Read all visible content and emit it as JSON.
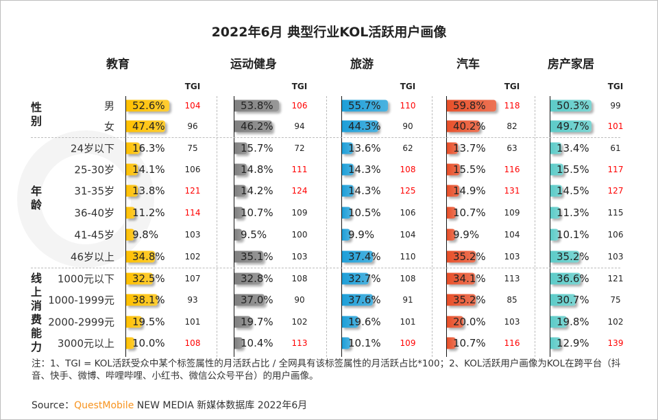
{
  "watermark": "QUESTMOBILE",
  "chart_data": {
    "type": "table",
    "title": "2022年6月 典型行业KOL活跃用户画像",
    "tgi_header": "TGI",
    "groups": [
      {
        "label": "性别",
        "rows": [
          "男",
          "女"
        ]
      },
      {
        "label": "年龄",
        "rows": [
          "24岁以下",
          "25-30岁",
          "31-35岁",
          "36-40岁",
          "41-45岁",
          "46岁以上"
        ]
      },
      {
        "label": "线上消费能力",
        "rows": [
          "1000元以下",
          "1000-1999元",
          "2000-2999元",
          "3000元以上"
        ]
      }
    ],
    "row_labels": [
      "男",
      "女",
      "24岁以下",
      "25-30岁",
      "31-35岁",
      "36-40岁",
      "41-45岁",
      "46岁以上",
      "1000元以下",
      "1000-1999元",
      "2000-2999元",
      "3000元以上"
    ],
    "series": [
      {
        "name": "教育",
        "color": "#ffc000",
        "values": [
          52.6,
          47.4,
          16.3,
          14.1,
          13.8,
          11.2,
          9.8,
          34.8,
          32.5,
          38.1,
          19.5,
          10.0
        ],
        "tgi": [
          104,
          96,
          75,
          106,
          121,
          114,
          103,
          102,
          107,
          93,
          101,
          108
        ],
        "tgi_highlight": [
          true,
          false,
          false,
          false,
          true,
          true,
          false,
          false,
          false,
          false,
          false,
          true
        ]
      },
      {
        "name": "运动健身",
        "color": "#7f7f7f",
        "values": [
          53.8,
          46.2,
          15.7,
          14.8,
          14.2,
          10.7,
          9.5,
          35.1,
          32.8,
          37.0,
          19.7,
          10.4
        ],
        "tgi": [
          106,
          94,
          72,
          111,
          124,
          109,
          100,
          103,
          108,
          90,
          102,
          113
        ],
        "tgi_highlight": [
          true,
          false,
          false,
          true,
          true,
          false,
          false,
          false,
          false,
          false,
          false,
          true
        ]
      },
      {
        "name": "旅游",
        "color": "#1e9fd8",
        "values": [
          55.7,
          44.3,
          13.6,
          14.3,
          14.3,
          10.5,
          9.9,
          37.4,
          32.7,
          37.6,
          19.6,
          10.1
        ],
        "tgi": [
          110,
          90,
          62,
          108,
          125,
          106,
          104,
          110,
          108,
          91,
          101,
          109
        ],
        "tgi_highlight": [
          true,
          false,
          false,
          true,
          true,
          false,
          false,
          false,
          false,
          false,
          false,
          true
        ]
      },
      {
        "name": "汽车",
        "color": "#e8502a",
        "values": [
          59.8,
          40.2,
          13.7,
          15.5,
          14.9,
          10.7,
          9.9,
          35.2,
          34.1,
          35.2,
          20.0,
          10.7
        ],
        "tgi": [
          118,
          82,
          63,
          116,
          131,
          109,
          104,
          103,
          113,
          85,
          103,
          116
        ],
        "tgi_highlight": [
          true,
          false,
          false,
          true,
          true,
          false,
          false,
          false,
          false,
          false,
          false,
          true
        ]
      },
      {
        "name": "房产家居",
        "color": "#5ccbc8",
        "values": [
          50.3,
          49.7,
          13.4,
          15.5,
          14.5,
          11.3,
          10.1,
          35.2,
          36.6,
          30.7,
          19.8,
          12.9
        ],
        "tgi": [
          99,
          101,
          61,
          117,
          127,
          115,
          106,
          103,
          121,
          75,
          102,
          139
        ],
        "tgi_highlight": [
          false,
          true,
          false,
          true,
          true,
          false,
          false,
          false,
          false,
          false,
          false,
          true
        ]
      }
    ],
    "highlight_color": "#ff0000"
  },
  "note": "注：1、TGI = KOL活跃受众中某个标签属性的月活跃占比 / 全网具有该标签属性的月活跃占比*100；2、KOL活跃用户画像为KOL在跨平台（抖音、快手、微博、哔哩哔哩、小红书、微信公众号平台）的用户画像。",
  "source": {
    "prefix": "Source：",
    "brand": "QuestMobile",
    "rest": "NEW MEDIA 新媒体数据库 2022年6月"
  }
}
